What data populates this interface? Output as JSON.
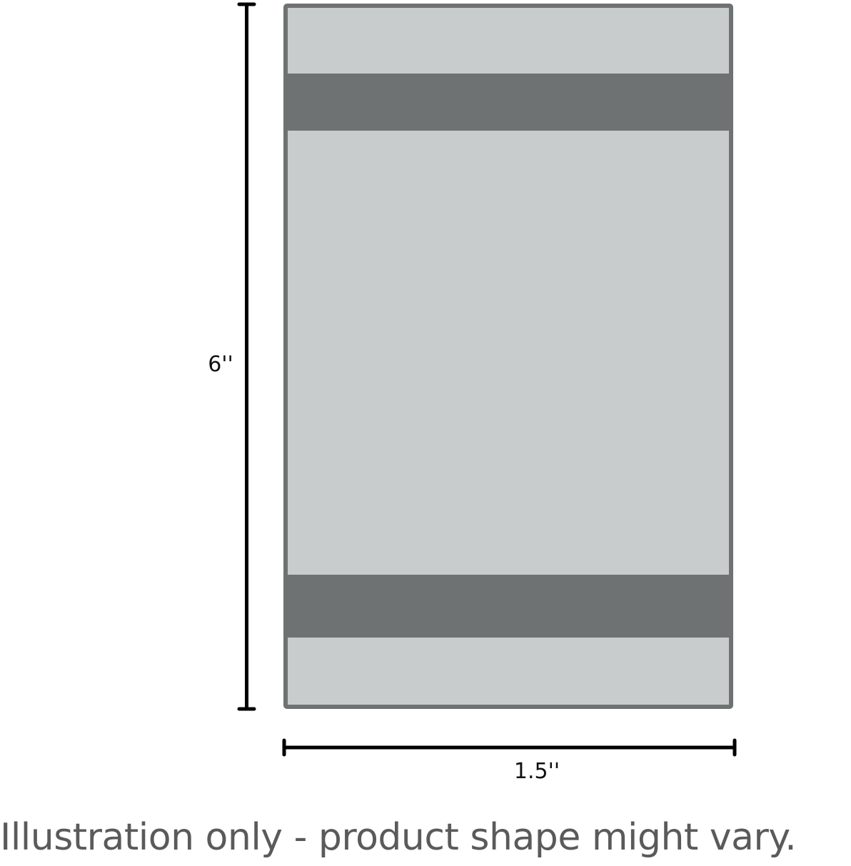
{
  "diagram": {
    "height_label": "6''",
    "width_label": "1.5''",
    "colors": {
      "body_fill": "#c8cccc",
      "band_fill": "#6f7272",
      "outline": "#6f7272",
      "dimension_line": "#000000"
    }
  },
  "caption": "Illustration only - product shape might vary."
}
